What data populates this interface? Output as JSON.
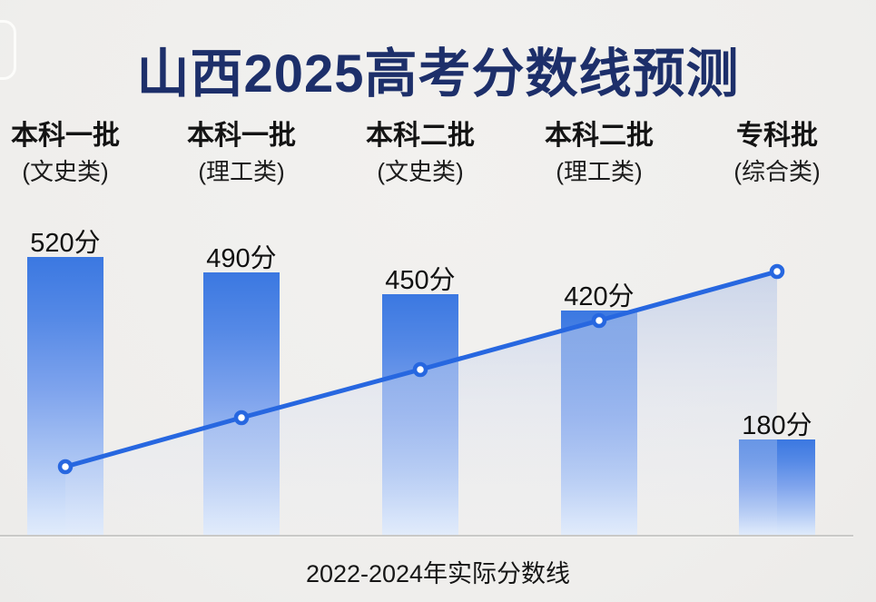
{
  "page": {
    "title": "山西2025高考分数线预测",
    "footer_label": "2022-2024年实际分数线"
  },
  "chart_data": {
    "type": "bar",
    "title": "山西2025高考分数线预测",
    "categories": [
      "本科一批(文史类)",
      "本科一批(理工类)",
      "本科二批(文史类)",
      "本科二批(理工类)",
      "专科批(综合类)"
    ],
    "category_names": [
      "本科一批",
      "本科一批",
      "本科二批",
      "本科二批",
      "专科批"
    ],
    "category_subs": [
      "(文史类)",
      "(理工类)",
      "(文史类)",
      "(理工类)",
      "(综合类)"
    ],
    "values": [
      520,
      490,
      450,
      420,
      180
    ],
    "value_labels": [
      "520分",
      "490分",
      "450分",
      "420分",
      "180分"
    ],
    "unit": "分",
    "xlabel": "2022-2024年实际分数线",
    "ylabel": "",
    "ylim": [
      0,
      560
    ],
    "grid": false,
    "legend": "none",
    "trend_line": {
      "description": "straight rising trend line with open circle markers, one marker at each category, translucent light-blue area fill beneath",
      "marker_count": 5,
      "direction": "rising left-to-right"
    },
    "colors": {
      "title_text": "#1d2f6a",
      "bar_gradient_top": "#3b78e1",
      "bar_gradient_bottom": "#e2ecfb",
      "trend_line": "#2767e0",
      "marker_fill": "#ffffff",
      "area_fill": "#c4d1ee",
      "background": "#f0efed",
      "text": "#141414"
    }
  }
}
